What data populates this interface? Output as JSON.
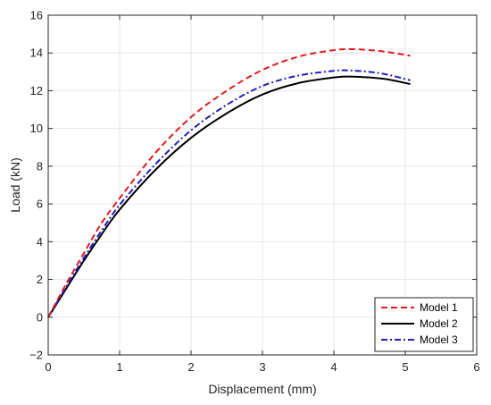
{
  "chart_data": {
    "type": "line",
    "title": "",
    "xlabel": "Displacement (mm)",
    "ylabel": "Load (kN)",
    "xlim": [
      0,
      6
    ],
    "ylim": [
      -2,
      16
    ],
    "xticks": [
      0,
      1,
      2,
      3,
      4,
      5,
      6
    ],
    "yticks": [
      -2,
      0,
      2,
      4,
      6,
      8,
      10,
      12,
      14,
      16
    ],
    "grid": true,
    "legend_position": "bottom-right",
    "series": [
      {
        "name": "Model 1",
        "color": "#e41a1c",
        "line_style": "dashed",
        "x": [
          0,
          0.25,
          0.5,
          0.75,
          1.0,
          1.5,
          2.0,
          2.5,
          3.0,
          3.5,
          4.0,
          4.25,
          4.5,
          4.75,
          5.07
        ],
        "y": [
          0,
          1.75,
          3.4,
          5.0,
          6.3,
          8.7,
          10.6,
          12.0,
          13.1,
          13.8,
          14.15,
          14.2,
          14.15,
          14.05,
          13.85
        ]
      },
      {
        "name": "Model 2",
        "color": "#000000",
        "line_style": "solid",
        "x": [
          0,
          0.25,
          0.5,
          0.75,
          1.0,
          1.5,
          2.0,
          2.5,
          3.0,
          3.5,
          4.0,
          4.2,
          4.5,
          4.75,
          5.07
        ],
        "y": [
          0,
          1.5,
          3.0,
          4.4,
          5.7,
          7.8,
          9.5,
          10.8,
          11.8,
          12.4,
          12.7,
          12.75,
          12.7,
          12.6,
          12.35
        ]
      },
      {
        "name": "Model 3",
        "color": "#1f1fbf",
        "line_style": "dashdot",
        "x": [
          0,
          0.25,
          0.5,
          0.75,
          1.0,
          1.5,
          2.0,
          2.5,
          3.0,
          3.5,
          4.0,
          4.15,
          4.5,
          4.75,
          5.07
        ],
        "y": [
          0,
          1.6,
          3.15,
          4.6,
          5.95,
          8.1,
          9.9,
          11.25,
          12.25,
          12.8,
          13.05,
          13.08,
          13.0,
          12.85,
          12.55
        ]
      }
    ]
  }
}
